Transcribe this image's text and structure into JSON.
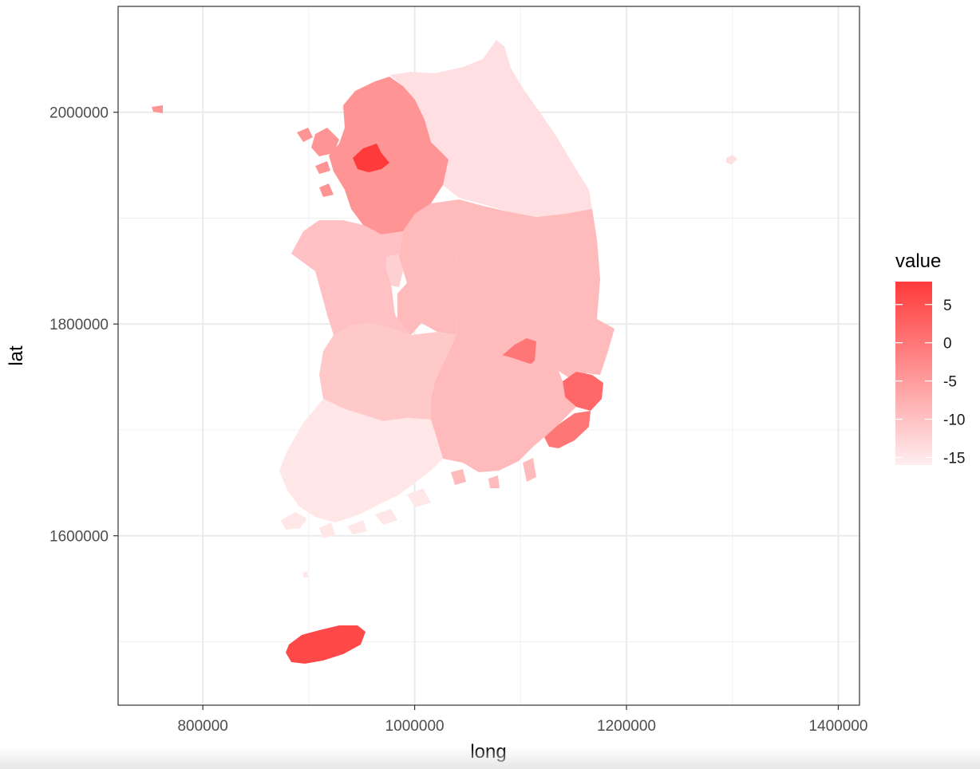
{
  "chart_data": {
    "type": "choropleth",
    "title": "",
    "xlabel": "long",
    "ylabel": "lat",
    "xlim": [
      720000,
      1420000
    ],
    "ylim": [
      1440000,
      2100000
    ],
    "x_ticks": [
      800000,
      1000000,
      1200000,
      1400000
    ],
    "x_tick_labels": [
      "800000",
      "1000000",
      "1200000",
      "1400000"
    ],
    "y_ticks": [
      1600000,
      1800000,
      2000000
    ],
    "y_tick_labels": [
      "1600000",
      "1800000",
      "2000000"
    ],
    "grid": true,
    "legend": {
      "title": "value",
      "position": "right",
      "range": [
        -16,
        8
      ],
      "color_low": "#ffeef0",
      "color_high": "#ff3a3a",
      "breaks": [
        5,
        0,
        -5,
        -10,
        -15
      ],
      "break_labels": [
        "5",
        "0",
        "-5",
        "-10",
        "-15"
      ]
    },
    "regions": [
      {
        "id": "gangwon",
        "value": -14
      },
      {
        "id": "gyeonggi",
        "value": -4
      },
      {
        "id": "seoul",
        "value": 8
      },
      {
        "id": "incheon",
        "value": -4
      },
      {
        "id": "chungnam",
        "value": -10
      },
      {
        "id": "sejong",
        "value": -12
      },
      {
        "id": "daejeon",
        "value": -3
      },
      {
        "id": "chungbuk",
        "value": -9
      },
      {
        "id": "gyeongbuk",
        "value": -9
      },
      {
        "id": "daegu",
        "value": 0
      },
      {
        "id": "ulsan",
        "value": 2
      },
      {
        "id": "busan",
        "value": 0
      },
      {
        "id": "jeonbuk",
        "value": -11
      },
      {
        "id": "gwangju",
        "value": -14
      },
      {
        "id": "jeonnam",
        "value": -15
      },
      {
        "id": "gyeongnam",
        "value": -9
      },
      {
        "id": "jeju",
        "value": 6
      },
      {
        "id": "dokdo",
        "value": -14
      }
    ]
  }
}
